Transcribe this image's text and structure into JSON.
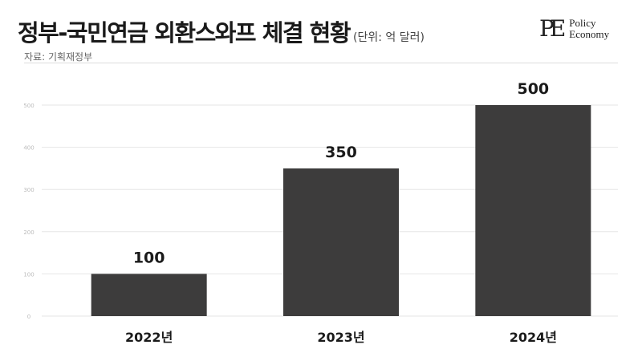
{
  "header": {
    "title": "정부-국민연금 외환스와프 체결 현황",
    "unit": "(단위: 억 달러)",
    "source": "자료: 기획재정부"
  },
  "logo": {
    "mark": "PE",
    "line1": "Policy",
    "line2": "Economy"
  },
  "colors": {
    "bar": "#3d3c3c",
    "grid": "#e6e6e6",
    "tick_label": "#bbbbbb",
    "text": "#1a1a1a"
  },
  "chart_data": {
    "type": "bar",
    "title": "정부-국민연금 외환스와프 체결 현황",
    "unit": "억 달러",
    "categories": [
      "2022년",
      "2023년",
      "2024년"
    ],
    "values": [
      100,
      350,
      500
    ],
    "data_labels": [
      "100",
      "350",
      "500"
    ],
    "ylim": [
      0,
      500
    ],
    "yticks": [
      0,
      100,
      200,
      300,
      400,
      500
    ],
    "grid": true,
    "legend": "none"
  }
}
